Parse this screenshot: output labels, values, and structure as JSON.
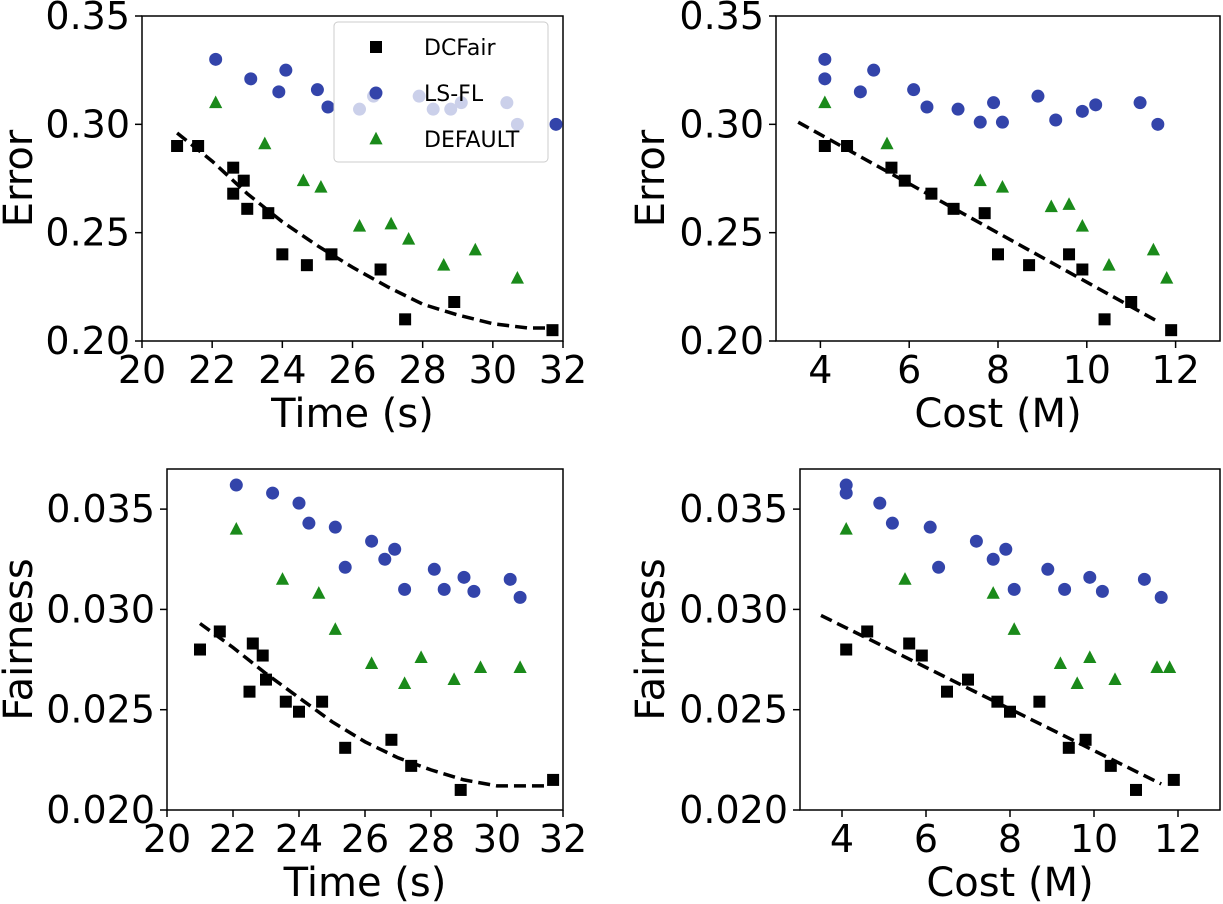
{
  "colors": {
    "DCFair": "#000000",
    "LS-FL": "#3344aa",
    "DEFAULT": "#1a8a1a",
    "fit_line": "#000000",
    "axes": "#000000",
    "background": "#ffffff"
  },
  "legend": {
    "placement": "top-right of first panel",
    "entries": [
      {
        "name": "DCFair",
        "marker": "square"
      },
      {
        "name": "LS-FL",
        "marker": "circle"
      },
      {
        "name": "DEFAULT",
        "marker": "triangle"
      }
    ]
  },
  "chart_data": [
    {
      "type": "scatter",
      "xlabel": "Time (s)",
      "ylabel": "Error",
      "xlim": [
        20,
        32
      ],
      "ylim": [
        0.2,
        0.35
      ],
      "xticks": [
        "20",
        "22",
        "24",
        "26",
        "28",
        "30",
        "32"
      ],
      "yticks": [
        "0.20",
        "0.25",
        "0.30",
        "0.35"
      ],
      "grid": false,
      "show_legend": true,
      "series": [
        {
          "name": "DCFair",
          "marker": "square",
          "points": [
            [
              21.0,
              0.29
            ],
            [
              21.6,
              0.29
            ],
            [
              22.6,
              0.28
            ],
            [
              22.9,
              0.274
            ],
            [
              22.6,
              0.268
            ],
            [
              23.0,
              0.261
            ],
            [
              23.6,
              0.259
            ],
            [
              24.0,
              0.24
            ],
            [
              24.7,
              0.235
            ],
            [
              25.4,
              0.24
            ],
            [
              26.8,
              0.233
            ],
            [
              27.5,
              0.21
            ],
            [
              28.9,
              0.218
            ],
            [
              31.7,
              0.205
            ]
          ]
        },
        {
          "name": "LS-FL",
          "marker": "circle",
          "points": [
            [
              22.1,
              0.33
            ],
            [
              23.1,
              0.321
            ],
            [
              24.1,
              0.325
            ],
            [
              23.9,
              0.315
            ],
            [
              25.0,
              0.316
            ],
            [
              25.3,
              0.308
            ],
            [
              26.2,
              0.307
            ],
            [
              26.6,
              0.313
            ],
            [
              27.9,
              0.313
            ],
            [
              28.3,
              0.307
            ],
            [
              28.8,
              0.307
            ],
            [
              29.1,
              0.31
            ],
            [
              30.4,
              0.31
            ],
            [
              30.7,
              0.3
            ],
            [
              31.8,
              0.3
            ]
          ]
        },
        {
          "name": "DEFAULT",
          "marker": "triangle",
          "points": [
            [
              22.1,
              0.31
            ],
            [
              23.5,
              0.291
            ],
            [
              24.6,
              0.274
            ],
            [
              25.1,
              0.271
            ],
            [
              26.2,
              0.253
            ],
            [
              27.1,
              0.254
            ],
            [
              27.6,
              0.247
            ],
            [
              28.6,
              0.235
            ],
            [
              29.5,
              0.242
            ],
            [
              30.7,
              0.229
            ]
          ]
        }
      ],
      "fit_line": {
        "style": "dashed",
        "kind": "quadratic",
        "points": [
          [
            21.0,
            0.296
          ],
          [
            22.0,
            0.283
          ],
          [
            23.0,
            0.268
          ],
          [
            24.0,
            0.255
          ],
          [
            25.0,
            0.244
          ],
          [
            26.0,
            0.234
          ],
          [
            27.0,
            0.225
          ],
          [
            28.0,
            0.217
          ],
          [
            29.0,
            0.212
          ],
          [
            30.0,
            0.208
          ],
          [
            31.0,
            0.206
          ],
          [
            31.7,
            0.206
          ]
        ]
      }
    },
    {
      "type": "scatter",
      "xlabel": "Cost (M)",
      "ylabel": "Error",
      "xlim": [
        3,
        13
      ],
      "ylim": [
        0.2,
        0.35
      ],
      "xticks": [
        "4",
        "6",
        "8",
        "10",
        "12"
      ],
      "yticks": [
        "0.20",
        "0.25",
        "0.30",
        "0.35"
      ],
      "grid": false,
      "show_legend": false,
      "series": [
        {
          "name": "DCFair",
          "marker": "square",
          "points": [
            [
              4.1,
              0.29
            ],
            [
              4.6,
              0.29
            ],
            [
              5.6,
              0.28
            ],
            [
              5.9,
              0.274
            ],
            [
              6.5,
              0.268
            ],
            [
              7.0,
              0.261
            ],
            [
              7.7,
              0.259
            ],
            [
              8.0,
              0.24
            ],
            [
              8.7,
              0.235
            ],
            [
              9.6,
              0.24
            ],
            [
              9.9,
              0.233
            ],
            [
              10.4,
              0.21
            ],
            [
              11.0,
              0.218
            ],
            [
              11.9,
              0.205
            ]
          ]
        },
        {
          "name": "LS-FL",
          "marker": "circle",
          "points": [
            [
              4.1,
              0.33
            ],
            [
              4.1,
              0.321
            ],
            [
              4.9,
              0.315
            ],
            [
              5.2,
              0.325
            ],
            [
              6.1,
              0.316
            ],
            [
              6.4,
              0.308
            ],
            [
              7.1,
              0.307
            ],
            [
              7.6,
              0.301
            ],
            [
              7.9,
              0.31
            ],
            [
              8.1,
              0.301
            ],
            [
              8.9,
              0.313
            ],
            [
              9.3,
              0.302
            ],
            [
              9.9,
              0.306
            ],
            [
              10.2,
              0.309
            ],
            [
              11.2,
              0.31
            ],
            [
              11.6,
              0.3
            ]
          ]
        },
        {
          "name": "DEFAULT",
          "marker": "triangle",
          "points": [
            [
              4.1,
              0.31
            ],
            [
              5.5,
              0.291
            ],
            [
              7.6,
              0.274
            ],
            [
              8.1,
              0.271
            ],
            [
              9.2,
              0.262
            ],
            [
              9.6,
              0.263
            ],
            [
              9.9,
              0.253
            ],
            [
              10.5,
              0.235
            ],
            [
              11.5,
              0.242
            ],
            [
              11.8,
              0.229
            ]
          ]
        }
      ],
      "fit_line": {
        "style": "dashed",
        "kind": "linear",
        "points": [
          [
            3.5,
            0.301
          ],
          [
            11.6,
            0.209
          ]
        ]
      }
    },
    {
      "type": "scatter",
      "xlabel": "Time (s)",
      "ylabel": "Fairness",
      "xlim": [
        20,
        32
      ],
      "ylim": [
        0.02,
        0.037
      ],
      "xticks": [
        "20",
        "22",
        "24",
        "26",
        "28",
        "30",
        "32"
      ],
      "yticks": [
        "0.020",
        "0.025",
        "0.030",
        "0.035"
      ],
      "grid": false,
      "show_legend": false,
      "series": [
        {
          "name": "DCFair",
          "marker": "square",
          "points": [
            [
              21.0,
              0.028
            ],
            [
              21.6,
              0.0289
            ],
            [
              22.6,
              0.0283
            ],
            [
              22.9,
              0.0277
            ],
            [
              22.5,
              0.0259
            ],
            [
              23.0,
              0.0265
            ],
            [
              23.6,
              0.0254
            ],
            [
              24.0,
              0.0249
            ],
            [
              24.7,
              0.0254
            ],
            [
              25.4,
              0.0231
            ],
            [
              26.8,
              0.0235
            ],
            [
              27.4,
              0.0222
            ],
            [
              28.9,
              0.021
            ],
            [
              31.7,
              0.0215
            ]
          ]
        },
        {
          "name": "LS-FL",
          "marker": "circle",
          "points": [
            [
              22.1,
              0.0362
            ],
            [
              23.2,
              0.0358
            ],
            [
              24.0,
              0.0353
            ],
            [
              24.3,
              0.0343
            ],
            [
              25.1,
              0.0341
            ],
            [
              25.4,
              0.0321
            ],
            [
              26.2,
              0.0334
            ],
            [
              26.6,
              0.0325
            ],
            [
              26.9,
              0.033
            ],
            [
              27.2,
              0.031
            ],
            [
              28.1,
              0.032
            ],
            [
              28.4,
              0.031
            ],
            [
              29.0,
              0.0316
            ],
            [
              29.3,
              0.0309
            ],
            [
              30.4,
              0.0315
            ],
            [
              30.7,
              0.0306
            ]
          ]
        },
        {
          "name": "DEFAULT",
          "marker": "triangle",
          "points": [
            [
              22.1,
              0.034
            ],
            [
              23.5,
              0.0315
            ],
            [
              24.6,
              0.0308
            ],
            [
              25.1,
              0.029
            ],
            [
              26.2,
              0.0273
            ],
            [
              27.2,
              0.0263
            ],
            [
              27.7,
              0.0276
            ],
            [
              28.7,
              0.0265
            ],
            [
              29.5,
              0.0271
            ],
            [
              30.7,
              0.0271
            ]
          ]
        }
      ],
      "fit_line": {
        "style": "dashed",
        "kind": "quadratic",
        "points": [
          [
            21.0,
            0.0293
          ],
          [
            22.0,
            0.0281
          ],
          [
            23.0,
            0.0268
          ],
          [
            24.0,
            0.0256
          ],
          [
            25.0,
            0.0244
          ],
          [
            26.0,
            0.0234
          ],
          [
            27.0,
            0.0226
          ],
          [
            28.0,
            0.022
          ],
          [
            29.0,
            0.0215
          ],
          [
            30.0,
            0.0212
          ],
          [
            31.0,
            0.0212
          ],
          [
            31.6,
            0.0212
          ]
        ]
      }
    },
    {
      "type": "scatter",
      "xlabel": "Cost (M)",
      "ylabel": "Fairness",
      "xlim": [
        3,
        13
      ],
      "ylim": [
        0.02,
        0.037
      ],
      "xticks": [
        "4",
        "6",
        "8",
        "10",
        "12"
      ],
      "yticks": [
        "0.020",
        "0.025",
        "0.030",
        "0.035"
      ],
      "grid": false,
      "show_legend": false,
      "series": [
        {
          "name": "DCFair",
          "marker": "square",
          "points": [
            [
              4.1,
              0.028
            ],
            [
              4.6,
              0.0289
            ],
            [
              5.6,
              0.0283
            ],
            [
              5.9,
              0.0277
            ],
            [
              6.5,
              0.0259
            ],
            [
              7.0,
              0.0265
            ],
            [
              7.7,
              0.0254
            ],
            [
              8.0,
              0.0249
            ],
            [
              8.7,
              0.0254
            ],
            [
              9.4,
              0.0231
            ],
            [
              9.8,
              0.0235
            ],
            [
              10.4,
              0.0222
            ],
            [
              11.0,
              0.021
            ],
            [
              11.9,
              0.0215
            ]
          ]
        },
        {
          "name": "LS-FL",
          "marker": "circle",
          "points": [
            [
              4.1,
              0.0362
            ],
            [
              4.1,
              0.0358
            ],
            [
              4.9,
              0.0353
            ],
            [
              5.2,
              0.0343
            ],
            [
              6.1,
              0.0341
            ],
            [
              6.3,
              0.0321
            ],
            [
              7.2,
              0.0334
            ],
            [
              7.6,
              0.0325
            ],
            [
              7.9,
              0.033
            ],
            [
              8.1,
              0.031
            ],
            [
              8.9,
              0.032
            ],
            [
              9.3,
              0.031
            ],
            [
              9.9,
              0.0316
            ],
            [
              10.2,
              0.0309
            ],
            [
              11.2,
              0.0315
            ],
            [
              11.6,
              0.0306
            ]
          ]
        },
        {
          "name": "DEFAULT",
          "marker": "triangle",
          "points": [
            [
              4.1,
              0.034
            ],
            [
              5.5,
              0.0315
            ],
            [
              7.6,
              0.0308
            ],
            [
              8.1,
              0.029
            ],
            [
              9.2,
              0.0273
            ],
            [
              9.6,
              0.0263
            ],
            [
              9.9,
              0.0276
            ],
            [
              10.5,
              0.0265
            ],
            [
              11.5,
              0.0271
            ],
            [
              11.8,
              0.0271
            ]
          ]
        }
      ],
      "fit_line": {
        "style": "dashed",
        "kind": "linear",
        "points": [
          [
            3.5,
            0.0297
          ],
          [
            11.6,
            0.0213
          ]
        ]
      }
    }
  ]
}
